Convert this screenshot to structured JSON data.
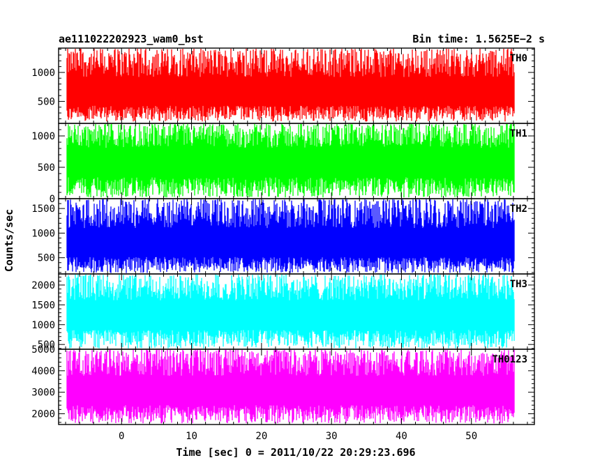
{
  "chart_data": {
    "type": "line",
    "title_left": "ae111022202923_wam0_bst",
    "title_right": "Bin time: 1.5625E−2 s",
    "xlabel": "Time [sec] 0 = 2011/10/22 20:29:23.696",
    "ylabel": "Counts/sec",
    "xlim": [
      -9,
      59
    ],
    "xticks": [
      0,
      10,
      20,
      30,
      40,
      50
    ],
    "x_range": [
      -7.8,
      56.2
    ],
    "panels": [
      {
        "name": "TH0",
        "color": "#ff0000",
        "ylim": [
          120,
          1420
        ],
        "yticks": [
          500,
          1000
        ],
        "low": 150,
        "mean": 650,
        "high": 1420
      },
      {
        "name": "TH1",
        "color": "#00ff00",
        "ylim": [
          0,
          1200
        ],
        "yticks": [
          0,
          500,
          1000
        ],
        "low": 20,
        "mean": 600,
        "high": 1200
      },
      {
        "name": "TH2",
        "color": "#0000ff",
        "ylim": [
          170,
          1700
        ],
        "yticks": [
          500,
          1000,
          1500
        ],
        "low": 190,
        "mean": 780,
        "high": 1700
      },
      {
        "name": "TH3",
        "color": "#00ffff",
        "ylim": [
          380,
          2280
        ],
        "yticks": [
          500,
          1000,
          1500,
          2000
        ],
        "low": 400,
        "mean": 1250,
        "high": 2280
      },
      {
        "name": "TH0123",
        "color": "#ff00ff",
        "ylim": [
          1500,
          5000
        ],
        "yticks": [
          2000,
          3000,
          4000,
          5000
        ],
        "low": 1550,
        "mean": 3100,
        "high": 5000
      }
    ]
  }
}
